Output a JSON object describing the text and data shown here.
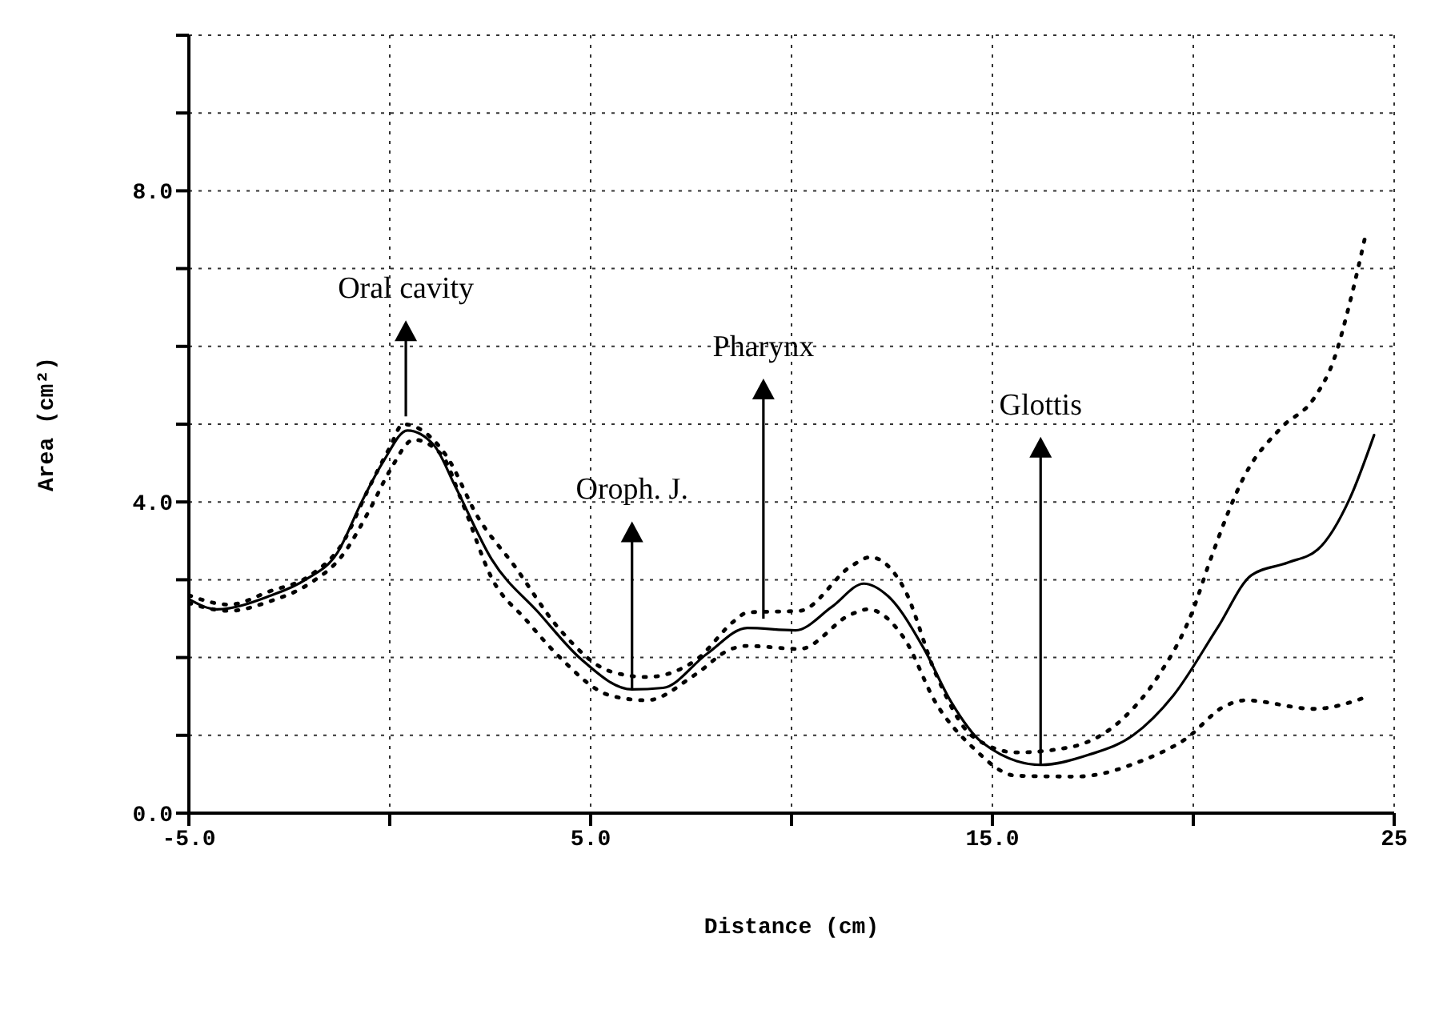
{
  "chart_data": {
    "type": "line",
    "xlabel": "Distance (cm)",
    "ylabel": "Area (cm²)",
    "xlim": [
      -5,
      25
    ],
    "ylim": [
      0,
      10
    ],
    "xticks": [
      {
        "value": -5,
        "label": "-5.0"
      },
      {
        "value": 0,
        "label": null
      },
      {
        "value": 5,
        "label": "5.0"
      },
      {
        "value": 10,
        "label": null
      },
      {
        "value": 15,
        "label": "15.0"
      },
      {
        "value": 20,
        "label": null
      },
      {
        "value": 25,
        "label": "25"
      }
    ],
    "yticks": [
      {
        "value": 0,
        "label": "0.0"
      },
      {
        "value": 1,
        "label": null
      },
      {
        "value": 2,
        "label": null
      },
      {
        "value": 3,
        "label": null
      },
      {
        "value": 4,
        "label": "4.0"
      },
      {
        "value": 5,
        "label": null
      },
      {
        "value": 6,
        "label": null
      },
      {
        "value": 7,
        "label": null
      },
      {
        "value": 8,
        "label": "8.0"
      },
      {
        "value": 9,
        "label": null
      },
      {
        "value": 10,
        "label": null
      }
    ],
    "grid": true,
    "marker": "none",
    "series": [
      {
        "color": "#000000",
        "line_style": "solid",
        "x": [
          -5,
          -4.3,
          -3,
          -2.1,
          -1.3,
          -0.7,
          -0.16,
          0.44,
          1.1,
          1.64,
          2.54,
          3.7,
          4.76,
          6.03,
          6.8,
          7.9,
          8.9,
          10.1,
          11,
          11.8,
          12.4,
          13.3,
          13.95,
          14.74,
          16.2,
          17.4,
          18.5,
          19.5,
          20.6,
          21.45,
          22.35,
          23.1,
          23.9,
          24.5
        ],
        "values": [
          2.75,
          2.62,
          2.79,
          3,
          3.35,
          4,
          4.52,
          4.92,
          4.73,
          4.19,
          3.26,
          2.58,
          1.98,
          1.59,
          1.61,
          2.05,
          2.38,
          2.35,
          2.65,
          2.95,
          2.79,
          2.11,
          1.45,
          0.91,
          0.62,
          0.75,
          1,
          1.51,
          2.38,
          3.06,
          3.22,
          3.39,
          4.05,
          4.86
        ]
      },
      {
        "color": "#000000",
        "line_style": "dotted",
        "x": [
          -5,
          -4,
          -3,
          -2,
          -1.2,
          -0.5,
          0,
          0.33,
          1.4,
          2.2,
          3.1,
          4.2,
          5.5,
          6.4,
          7.6,
          8.6,
          8.9,
          10.2,
          11.5,
          11.96,
          12.8,
          13.6,
          14.5,
          15.6,
          16.95,
          18.3,
          19.1,
          20,
          20.4,
          21.3,
          22.2,
          23,
          23.5,
          23.9,
          24.3
        ],
        "values": [
          2.8,
          2.68,
          2.85,
          3.05,
          3.45,
          4.2,
          4.7,
          5,
          4.6,
          3.8,
          3.18,
          2.38,
          1.82,
          1.75,
          1.96,
          2.48,
          2.58,
          2.6,
          3.18,
          3.29,
          2.89,
          1.78,
          0.99,
          0.78,
          0.85,
          1.24,
          1.74,
          2.62,
          3.22,
          4.36,
          4.96,
          5.33,
          5.83,
          6.57,
          7.46
        ]
      },
      {
        "color": "#000000",
        "line_style": "dotted",
        "x": [
          -5,
          -4,
          -3,
          -2,
          -1.2,
          -0.5,
          0,
          0.6,
          1.3,
          1.8,
          2.54,
          3.4,
          4.2,
          5.5,
          6.4,
          7.6,
          8.5,
          8.9,
          10.2,
          11.5,
          11.9,
          12.8,
          13.6,
          14.5,
          15.6,
          17.1,
          18.75,
          19.8,
          20.8,
          21.3,
          23,
          24.3
        ],
        "values": [
          2.7,
          2.6,
          2.72,
          2.95,
          3.3,
          3.9,
          4.4,
          4.8,
          4.6,
          4,
          3.02,
          2.48,
          2.02,
          1.51,
          1.45,
          1.78,
          2.11,
          2.15,
          2.11,
          2.56,
          2.62,
          2.25,
          1.41,
          0.85,
          0.48,
          0.47,
          0.68,
          0.95,
          1.38,
          1.45,
          1.34,
          1.49
        ]
      }
    ],
    "annotations": [
      {
        "text": "Oral cavity",
        "x": 0.4,
        "y": 5.1
      },
      {
        "text": "Oroph. J.",
        "x": 6.03,
        "y": 1.59
      },
      {
        "text": "Pharynx",
        "x": 9.3,
        "y": 2.5
      },
      {
        "text": "Glottis",
        "x": 16.2,
        "y": 0.62
      }
    ]
  }
}
